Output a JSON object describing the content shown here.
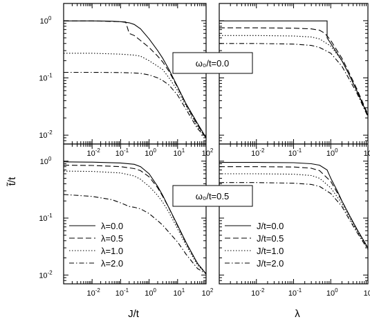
{
  "figure": {
    "ylabel": "t̃/t",
    "xlabels": [
      "J/t",
      "λ"
    ],
    "annotations": [
      "ω₀/t=0.0",
      "ω₀/t=0.5"
    ]
  },
  "chart_data": [
    {
      "id": "top-left",
      "type": "line",
      "xscale": "log",
      "yscale": "log",
      "xlim": [
        0.001,
        100
      ],
      "ylim": [
        0.007,
        2
      ],
      "xticks": [
        0.01,
        0.1,
        1,
        10,
        100
      ],
      "yticks": [
        0.01,
        0.1,
        1
      ],
      "series": [
        {
          "style": "solid",
          "x": [
            0.001,
            0.01,
            0.05,
            0.1,
            0.2,
            0.3,
            0.5,
            1,
            2,
            3,
            5,
            10,
            20,
            50,
            100
          ],
          "y": [
            0.99,
            0.99,
            0.98,
            0.96,
            0.92,
            0.86,
            0.72,
            0.48,
            0.3,
            0.22,
            0.14,
            0.07,
            0.035,
            0.016,
            0.009
          ]
        },
        {
          "style": "dashed",
          "x": [
            0.001,
            0.01,
            0.1,
            0.15,
            0.2,
            0.3,
            0.5,
            1,
            2,
            3,
            5,
            10,
            20,
            50,
            100
          ],
          "y": [
            0.99,
            0.99,
            0.96,
            0.95,
            0.6,
            0.55,
            0.45,
            0.34,
            0.24,
            0.19,
            0.13,
            0.068,
            0.034,
            0.015,
            0.009
          ]
        },
        {
          "style": "dotted",
          "x": [
            0.001,
            0.01,
            0.1,
            0.3,
            0.5,
            1,
            2,
            3,
            5,
            10,
            20,
            50,
            100
          ],
          "y": [
            0.27,
            0.27,
            0.26,
            0.25,
            0.24,
            0.2,
            0.16,
            0.14,
            0.1,
            0.06,
            0.032,
            0.014,
            0.009
          ]
        },
        {
          "style": "dashdot",
          "x": [
            0.001,
            0.01,
            0.1,
            0.3,
            0.5,
            1,
            2,
            3,
            5,
            10,
            20,
            50,
            100
          ],
          "y": [
            0.125,
            0.125,
            0.124,
            0.122,
            0.12,
            0.113,
            0.1,
            0.09,
            0.075,
            0.05,
            0.028,
            0.013,
            0.009
          ]
        }
      ]
    },
    {
      "id": "top-right",
      "type": "line",
      "xscale": "log",
      "yscale": "log",
      "xlim": [
        0.001,
        10
      ],
      "ylim": [
        0.007,
        2
      ],
      "xticks": [
        0.01,
        0.1,
        1,
        10
      ],
      "yticks": [],
      "series": [
        {
          "style": "solid",
          "x": [
            0.001,
            0.01,
            0.1,
            0.5,
            0.8,
            0.8,
            1,
            2,
            3,
            5,
            10
          ],
          "y": [
            0.99,
            0.99,
            0.99,
            0.99,
            0.99,
            0.5,
            0.4,
            0.2,
            0.12,
            0.06,
            0.022
          ]
        },
        {
          "style": "dashed",
          "x": [
            0.001,
            0.01,
            0.1,
            0.3,
            0.5,
            0.7,
            1,
            2,
            3,
            5,
            10
          ],
          "y": [
            0.75,
            0.75,
            0.74,
            0.72,
            0.68,
            0.6,
            0.45,
            0.22,
            0.13,
            0.065,
            0.023
          ]
        },
        {
          "style": "dotted",
          "x": [
            0.001,
            0.01,
            0.1,
            0.3,
            0.5,
            1,
            2,
            3,
            5,
            10
          ],
          "y": [
            0.55,
            0.55,
            0.54,
            0.52,
            0.48,
            0.36,
            0.2,
            0.12,
            0.06,
            0.022
          ]
        },
        {
          "style": "dashdot",
          "x": [
            0.001,
            0.01,
            0.1,
            0.3,
            0.5,
            1,
            2,
            3,
            5,
            10
          ],
          "y": [
            0.4,
            0.4,
            0.39,
            0.37,
            0.34,
            0.27,
            0.16,
            0.1,
            0.055,
            0.021
          ]
        }
      ]
    },
    {
      "id": "bottom-left",
      "type": "line",
      "xscale": "log",
      "yscale": "log",
      "xlim": [
        0.001,
        100
      ],
      "ylim": [
        0.007,
        2
      ],
      "xticks": [
        0.01,
        0.1,
        1,
        10,
        100
      ],
      "yticks": [
        0.01,
        0.1,
        1
      ],
      "legend": [
        "λ=0.0",
        "λ=0.5",
        "λ=1.0",
        "λ=2.0"
      ],
      "series": [
        {
          "name": "λ=0.0",
          "style": "solid",
          "x": [
            0.001,
            0.01,
            0.1,
            0.3,
            0.5,
            1,
            2,
            3,
            5,
            10,
            20,
            50,
            100
          ],
          "y": [
            0.97,
            0.96,
            0.93,
            0.88,
            0.8,
            0.6,
            0.36,
            0.25,
            0.15,
            0.075,
            0.037,
            0.016,
            0.0105
          ]
        },
        {
          "name": "λ=0.5",
          "style": "dashed",
          "x": [
            0.001,
            0.01,
            0.1,
            0.3,
            0.5,
            1,
            2,
            3,
            5,
            10,
            20,
            50,
            100
          ],
          "y": [
            0.85,
            0.84,
            0.8,
            0.74,
            0.68,
            0.53,
            0.34,
            0.24,
            0.15,
            0.073,
            0.036,
            0.016,
            0.0105
          ]
        },
        {
          "name": "λ=1.0",
          "style": "dotted",
          "x": [
            0.001,
            0.01,
            0.1,
            0.3,
            0.5,
            1,
            2,
            3,
            5,
            10,
            20,
            50,
            100
          ],
          "y": [
            0.67,
            0.66,
            0.62,
            0.55,
            0.48,
            0.36,
            0.25,
            0.19,
            0.125,
            0.065,
            0.033,
            0.015,
            0.0105
          ]
        },
        {
          "name": "λ=2.0",
          "style": "dashdot",
          "x": [
            0.001,
            0.01,
            0.05,
            0.1,
            0.2,
            0.3,
            0.5,
            1,
            2,
            3,
            5,
            10,
            20,
            50,
            100
          ],
          "y": [
            0.26,
            0.24,
            0.21,
            0.185,
            0.16,
            0.155,
            0.145,
            0.12,
            0.09,
            0.075,
            0.056,
            0.038,
            0.023,
            0.013,
            0.0105
          ]
        }
      ]
    },
    {
      "id": "bottom-right",
      "type": "line",
      "xscale": "log",
      "yscale": "log",
      "xlim": [
        0.001,
        10
      ],
      "ylim": [
        0.007,
        2
      ],
      "xticks": [
        0.01,
        0.1,
        1,
        10
      ],
      "yticks": [],
      "legend": [
        "J/t=0.0",
        "J/t=0.5",
        "J/t=1.0",
        "J/t=2.0"
      ],
      "series": [
        {
          "name": "J/t=0.0",
          "style": "solid",
          "x": [
            0.001,
            0.01,
            0.1,
            0.3,
            0.5,
            0.8,
            1,
            1.5,
            2,
            3,
            5,
            10
          ],
          "y": [
            0.95,
            0.95,
            0.94,
            0.9,
            0.85,
            0.7,
            0.5,
            0.3,
            0.2,
            0.12,
            0.065,
            0.03
          ]
        },
        {
          "name": "J/t=0.5",
          "style": "dashed",
          "x": [
            0.001,
            0.01,
            0.1,
            0.3,
            0.5,
            1,
            2,
            3,
            5,
            10
          ],
          "y": [
            0.8,
            0.8,
            0.79,
            0.75,
            0.68,
            0.44,
            0.2,
            0.12,
            0.064,
            0.03
          ]
        },
        {
          "name": "J/t=1.0",
          "style": "dotted",
          "x": [
            0.001,
            0.01,
            0.1,
            0.3,
            0.5,
            1,
            2,
            3,
            5,
            10
          ],
          "y": [
            0.6,
            0.6,
            0.59,
            0.56,
            0.5,
            0.34,
            0.18,
            0.11,
            0.06,
            0.029
          ]
        },
        {
          "name": "J/t=2.0",
          "style": "dashdot",
          "x": [
            0.001,
            0.01,
            0.1,
            0.3,
            0.5,
            1,
            2,
            3,
            5,
            10
          ],
          "y": [
            0.42,
            0.42,
            0.41,
            0.39,
            0.36,
            0.27,
            0.16,
            0.1,
            0.057,
            0.028
          ]
        }
      ]
    }
  ]
}
